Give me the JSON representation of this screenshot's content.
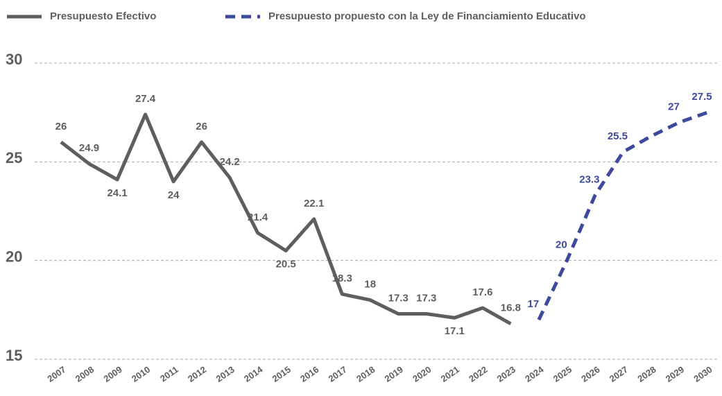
{
  "chart_data": {
    "type": "line",
    "categories": [
      "2007",
      "2008",
      "2009",
      "2010",
      "2011",
      "2012",
      "2013",
      "2014",
      "2015",
      "2016",
      "2017",
      "2018",
      "2019",
      "2020",
      "2021",
      "2022",
      "2023",
      "2024",
      "2025",
      "2026",
      "2027",
      "2028",
      "2029",
      "2030"
    ],
    "series": [
      {
        "name": "Presupuesto Efectivo",
        "color": "#5e5e5e",
        "dashed": false,
        "values": [
          26,
          24.9,
          24.1,
          27.4,
          24,
          26,
          24.2,
          21.4,
          20.5,
          22.1,
          18.3,
          18,
          17.3,
          17.3,
          17.1,
          17.6,
          16.8,
          null,
          null,
          null,
          null,
          null,
          null,
          null
        ],
        "value_labels": [
          "26",
          "24.9",
          "24.1",
          "27.4",
          "24",
          "26",
          "24.2",
          "21.4",
          "20.5",
          "22.1",
          "18.3",
          "18",
          "17.3",
          "17.3",
          "17.1",
          "17.6",
          "16.8",
          null,
          null,
          null,
          null,
          null,
          null,
          null
        ]
      },
      {
        "name": "Presupuesto propuesto con la Ley de Financiamiento Educativo",
        "color": "#3d4a9c",
        "dashed": true,
        "values": [
          null,
          null,
          null,
          null,
          null,
          null,
          null,
          null,
          null,
          null,
          null,
          null,
          null,
          null,
          null,
          null,
          null,
          17,
          20,
          23.3,
          25.5,
          26.3,
          27,
          27.5
        ],
        "value_labels": [
          null,
          null,
          null,
          null,
          null,
          null,
          null,
          null,
          null,
          null,
          null,
          null,
          null,
          null,
          null,
          null,
          null,
          "17",
          "20",
          "23.3",
          "25.5",
          null,
          "27",
          "27.5"
        ]
      }
    ],
    "ylim": [
      15,
      30
    ],
    "yticks": [
      15,
      20,
      25,
      30
    ],
    "grid": true
  }
}
